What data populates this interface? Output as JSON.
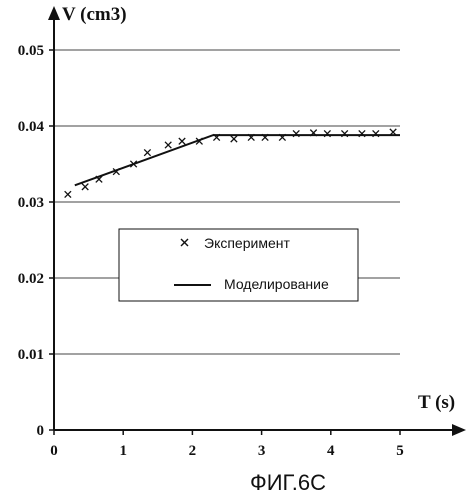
{
  "chart_data": {
    "type": "scatter",
    "ylabel": "V (cm3)",
    "xlabel": "T (s)",
    "caption": "ФИГ.6С",
    "xlim": [
      0,
      5
    ],
    "ylim": [
      0,
      0.05
    ],
    "x_ticks": [
      "0",
      "1",
      "2",
      "3",
      "4",
      "5"
    ],
    "y_ticks": [
      "0",
      "0.01",
      "0.02",
      "0.03",
      "0.04",
      "0.05"
    ],
    "grid": "horizontal",
    "legend_position": "center",
    "series": [
      {
        "name": "Эксперимент",
        "kind": "markers",
        "marker": "x",
        "x": [
          0.2,
          0.45,
          0.65,
          0.9,
          1.15,
          1.35,
          1.65,
          1.85,
          2.1,
          2.35,
          2.6,
          2.85,
          3.05,
          3.3,
          3.5,
          3.75,
          3.95,
          4.2,
          4.45,
          4.65,
          4.9
        ],
        "y": [
          0.031,
          0.032,
          0.033,
          0.034,
          0.035,
          0.0365,
          0.0375,
          0.038,
          0.038,
          0.0385,
          0.0383,
          0.0385,
          0.0385,
          0.0385,
          0.039,
          0.0391,
          0.039,
          0.039,
          0.039,
          0.039,
          0.0392
        ]
      },
      {
        "name": "Моделирование",
        "kind": "line",
        "x": [
          0.3,
          1.0,
          2.3,
          3.0,
          5.0
        ],
        "y": [
          0.0322,
          0.0345,
          0.0388,
          0.0388,
          0.0388
        ]
      }
    ],
    "colors": {
      "axis": "#111111",
      "grid": "#444444",
      "line": "#111111",
      "marker": "#111111"
    }
  }
}
